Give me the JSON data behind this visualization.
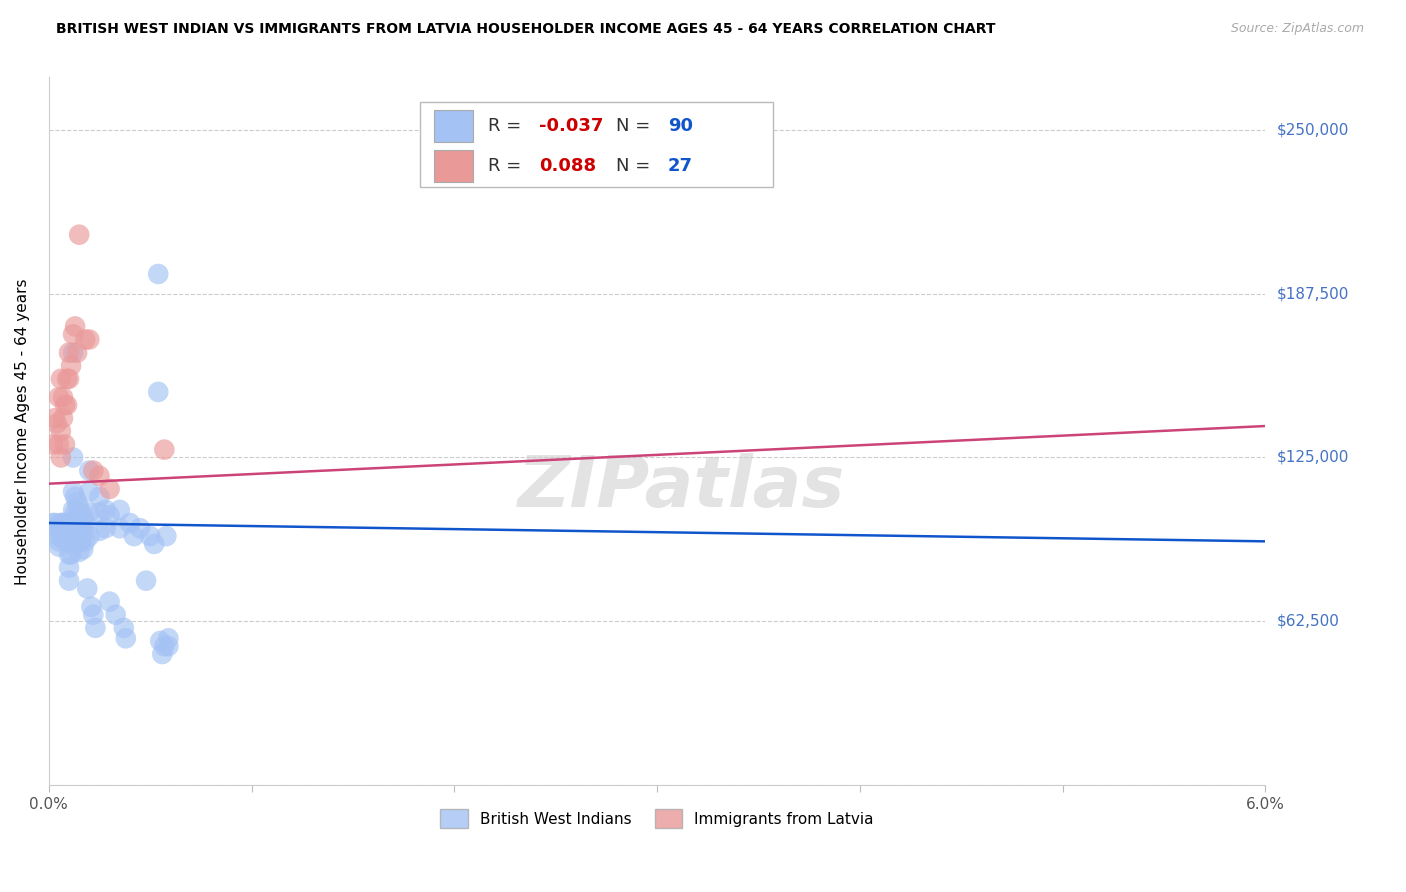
{
  "title": "BRITISH WEST INDIAN VS IMMIGRANTS FROM LATVIA HOUSEHOLDER INCOME AGES 45 - 64 YEARS CORRELATION CHART",
  "source": "Source: ZipAtlas.com",
  "ylabel": "Householder Income Ages 45 - 64 years",
  "xlim": [
    0.0,
    0.06
  ],
  "ylim": [
    0,
    270000
  ],
  "yticks": [
    0,
    62500,
    125000,
    187500,
    250000
  ],
  "ytick_labels": [
    "",
    "$62,500",
    "$125,000",
    "$187,500",
    "$250,000"
  ],
  "xticks": [
    0.0,
    0.01,
    0.02,
    0.03,
    0.04,
    0.05,
    0.06
  ],
  "xtick_labels": [
    "0.0%",
    "",
    "",
    "",
    "",
    "",
    "6.0%"
  ],
  "blue_color": "#a4c2f4",
  "pink_color": "#ea9999",
  "blue_line_color": "#1155cc",
  "pink_line_color": "#cc4477",
  "blue_R": -0.037,
  "blue_N": 90,
  "pink_R": 0.088,
  "pink_N": 27,
  "blue_line": [
    100000,
    93000
  ],
  "pink_line": [
    115000,
    137000
  ],
  "watermark": "ZIPatlas",
  "legend_label_blue": "British West Indians",
  "legend_label_pink": "Immigrants from Latvia",
  "blue_points": [
    [
      0.0002,
      100000
    ],
    [
      0.0003,
      100000
    ],
    [
      0.0004,
      98000
    ],
    [
      0.0005,
      97000
    ],
    [
      0.0005,
      95000
    ],
    [
      0.0005,
      93000
    ],
    [
      0.0005,
      91000
    ],
    [
      0.0006,
      100000
    ],
    [
      0.0006,
      98000
    ],
    [
      0.0006,
      96000
    ],
    [
      0.0007,
      100000
    ],
    [
      0.0007,
      98000
    ],
    [
      0.0007,
      96000
    ],
    [
      0.0007,
      94000
    ],
    [
      0.0008,
      100000
    ],
    [
      0.0008,
      98000
    ],
    [
      0.0008,
      96000
    ],
    [
      0.0008,
      94000
    ],
    [
      0.0009,
      100000
    ],
    [
      0.0009,
      97000
    ],
    [
      0.0009,
      93000
    ],
    [
      0.001,
      100000
    ],
    [
      0.001,
      97000
    ],
    [
      0.001,
      93000
    ],
    [
      0.001,
      88000
    ],
    [
      0.001,
      83000
    ],
    [
      0.001,
      78000
    ],
    [
      0.0011,
      100000
    ],
    [
      0.0011,
      96000
    ],
    [
      0.0011,
      92000
    ],
    [
      0.0011,
      88000
    ],
    [
      0.0012,
      165000
    ],
    [
      0.0012,
      125000
    ],
    [
      0.0012,
      112000
    ],
    [
      0.0012,
      105000
    ],
    [
      0.0012,
      100000
    ],
    [
      0.0012,
      95000
    ],
    [
      0.0013,
      110000
    ],
    [
      0.0013,
      104000
    ],
    [
      0.0013,
      98000
    ],
    [
      0.0013,
      92000
    ],
    [
      0.0014,
      108000
    ],
    [
      0.0014,
      103000
    ],
    [
      0.0014,
      97000
    ],
    [
      0.0015,
      106000
    ],
    [
      0.0015,
      101000
    ],
    [
      0.0015,
      95000
    ],
    [
      0.0015,
      89000
    ],
    [
      0.0016,
      104000
    ],
    [
      0.0016,
      99000
    ],
    [
      0.0016,
      93000
    ],
    [
      0.0017,
      102000
    ],
    [
      0.0017,
      96000
    ],
    [
      0.0017,
      90000
    ],
    [
      0.0018,
      100000
    ],
    [
      0.0018,
      93000
    ],
    [
      0.0019,
      75000
    ],
    [
      0.002,
      120000
    ],
    [
      0.002,
      112000
    ],
    [
      0.002,
      104000
    ],
    [
      0.002,
      95000
    ],
    [
      0.0021,
      68000
    ],
    [
      0.0022,
      65000
    ],
    [
      0.0023,
      60000
    ],
    [
      0.0025,
      110000
    ],
    [
      0.0025,
      104000
    ],
    [
      0.0025,
      97000
    ],
    [
      0.0028,
      105000
    ],
    [
      0.0028,
      98000
    ],
    [
      0.003,
      103000
    ],
    [
      0.003,
      70000
    ],
    [
      0.0033,
      65000
    ],
    [
      0.0035,
      105000
    ],
    [
      0.0035,
      98000
    ],
    [
      0.0037,
      60000
    ],
    [
      0.0038,
      56000
    ],
    [
      0.004,
      100000
    ],
    [
      0.0042,
      95000
    ],
    [
      0.0045,
      98000
    ],
    [
      0.0048,
      78000
    ],
    [
      0.005,
      95000
    ],
    [
      0.0052,
      92000
    ],
    [
      0.0054,
      195000
    ],
    [
      0.0054,
      150000
    ],
    [
      0.0055,
      55000
    ],
    [
      0.0056,
      50000
    ],
    [
      0.0057,
      53000
    ],
    [
      0.0058,
      95000
    ],
    [
      0.0059,
      56000
    ],
    [
      0.0059,
      53000
    ]
  ],
  "pink_points": [
    [
      0.0002,
      130000
    ],
    [
      0.0003,
      140000
    ],
    [
      0.0004,
      138000
    ],
    [
      0.0005,
      148000
    ],
    [
      0.0005,
      130000
    ],
    [
      0.0006,
      155000
    ],
    [
      0.0006,
      135000
    ],
    [
      0.0006,
      125000
    ],
    [
      0.0007,
      148000
    ],
    [
      0.0007,
      140000
    ],
    [
      0.0008,
      145000
    ],
    [
      0.0008,
      130000
    ],
    [
      0.0009,
      155000
    ],
    [
      0.0009,
      145000
    ],
    [
      0.001,
      165000
    ],
    [
      0.001,
      155000
    ],
    [
      0.0011,
      160000
    ],
    [
      0.0012,
      172000
    ],
    [
      0.0013,
      175000
    ],
    [
      0.0014,
      165000
    ],
    [
      0.0015,
      210000
    ],
    [
      0.0018,
      170000
    ],
    [
      0.002,
      170000
    ],
    [
      0.0022,
      120000
    ],
    [
      0.0025,
      118000
    ],
    [
      0.003,
      113000
    ],
    [
      0.0057,
      128000
    ]
  ]
}
